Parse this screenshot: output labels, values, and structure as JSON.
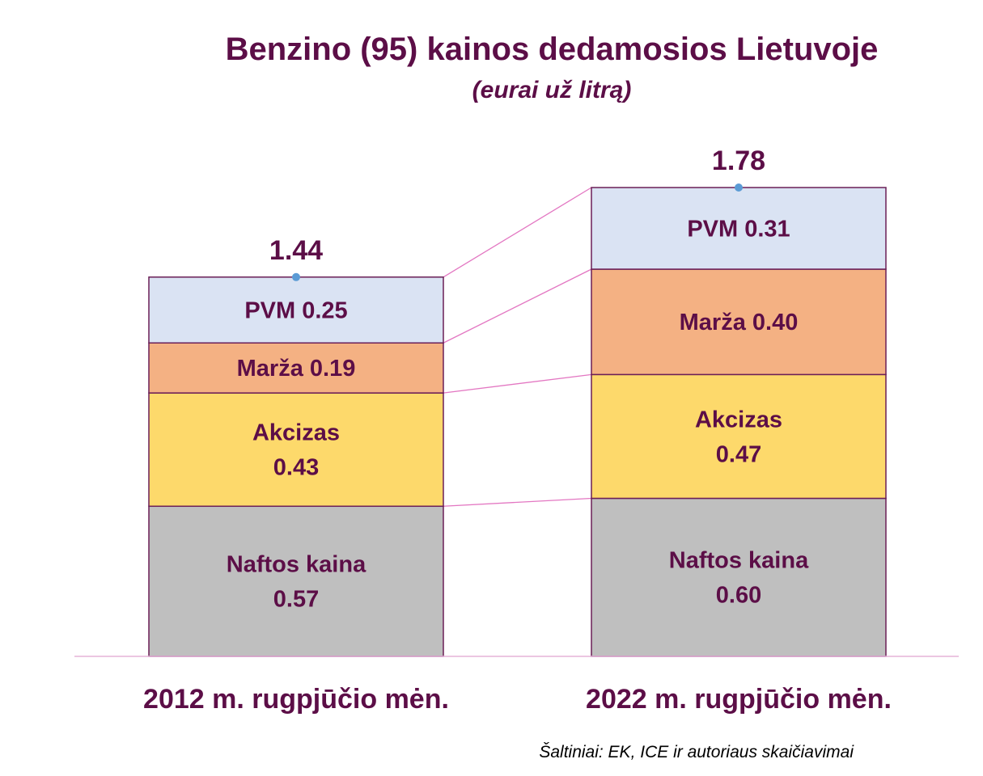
{
  "chart_data": {
    "type": "bar",
    "stacked": true,
    "title": "Benzino (95) kainos dedamosios Lietuvoje",
    "subtitle": "(eurai už litrą)",
    "categories": [
      "2012 m. rugpjūčio mėn.",
      "2022 m. rugpjūčio mėn."
    ],
    "series": [
      {
        "name": "Naftos kaina",
        "values": [
          0.57,
          0.6
        ],
        "labels": [
          [
            "Naftos kaina",
            "0.57"
          ],
          [
            "Naftos kaina",
            "0.60"
          ]
        ],
        "color": "#bfbfbf"
      },
      {
        "name": "Akcizas",
        "values": [
          0.43,
          0.47
        ],
        "labels": [
          [
            "Akcizas",
            "0.43"
          ],
          [
            "Akcizas",
            "0.47"
          ]
        ],
        "color": "#fdd96b"
      },
      {
        "name": "Marža",
        "values": [
          0.19,
          0.4
        ],
        "labels": [
          [
            "Marža 0.19"
          ],
          [
            "Marža 0.40"
          ]
        ],
        "color": "#f4b183"
      },
      {
        "name": "PVM",
        "values": [
          0.25,
          0.31
        ],
        "labels": [
          [
            "PVM 0.25"
          ],
          [
            "PVM 0.31"
          ]
        ],
        "color": "#dae3f3"
      }
    ],
    "totals": [
      "1.44",
      "1.78"
    ],
    "ylim": [
      0,
      1.78
    ],
    "source": "Šaltiniai: EK, ICE ir autoriaus skaičiavimai",
    "colors": {
      "text": "#5c0e47",
      "bar_border": "#6b1f57",
      "connector": "#e377c2",
      "axis": "#e6b3d9",
      "total_marker": "#5b9bd5",
      "source_text": "#000000"
    }
  }
}
